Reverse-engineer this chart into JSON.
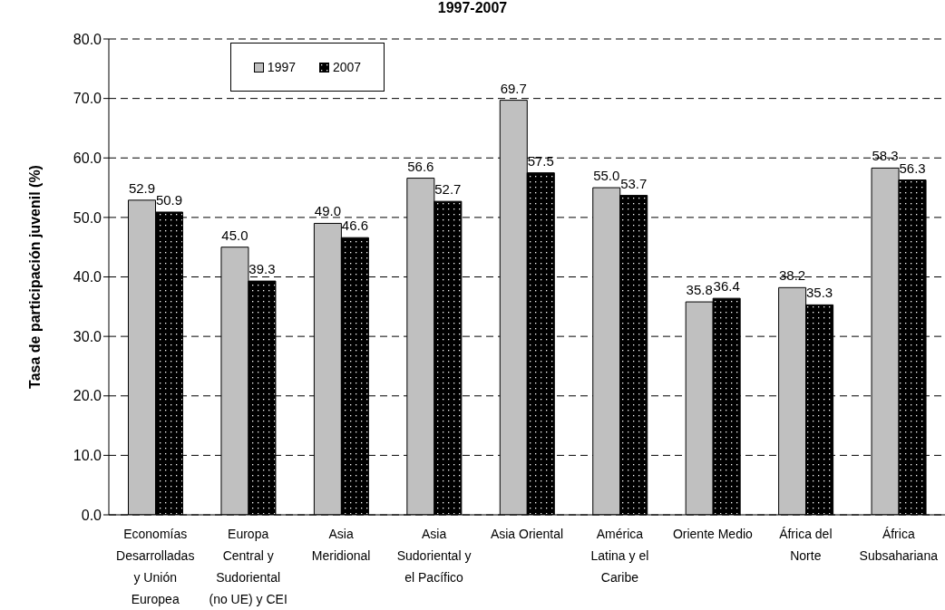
{
  "chart_data": {
    "type": "bar",
    "title": "1997-2007",
    "ylabel": "Tasa de participación juvenil (%)",
    "categories": [
      "Economías Desarrolladas y Unión Europea",
      "Europa Central y Sudoriental (no UE) y CEI",
      "Asia Meridional",
      "Asia Sudoriental y el Pacífico",
      "Asia Oriental",
      "América Latina y el Caribe",
      "Oriente Medio",
      "África del Norte",
      "África Subsahariana"
    ],
    "series": [
      {
        "name": "1997",
        "color": "#c0c0c0",
        "values": [
          52.9,
          45.0,
          49.0,
          56.6,
          69.7,
          55.0,
          35.8,
          38.2,
          58.3
        ],
        "value_labels": [
          "52.9",
          "45.0",
          "49.0",
          "56.6",
          "69.7",
          "55.0",
          "35.8",
          "38.2",
          "58.3"
        ]
      },
      {
        "name": "2007",
        "color": "#000000",
        "values": [
          50.9,
          39.3,
          46.6,
          52.7,
          57.5,
          53.7,
          36.4,
          35.3,
          56.3
        ],
        "value_labels": [
          "50.9",
          "39.3",
          "46.6",
          "52.7",
          "57.5",
          "53.7",
          "36.4",
          "35.3",
          "56.3"
        ]
      }
    ],
    "ylim": [
      0,
      80
    ],
    "yticks": [
      {
        "value": 0,
        "label": "0.0"
      },
      {
        "value": 10,
        "label": "10.0"
      },
      {
        "value": 20,
        "label": "20.0"
      },
      {
        "value": 30,
        "label": "30.0"
      },
      {
        "value": 40,
        "label": "40.0"
      },
      {
        "value": 50,
        "label": "50.0"
      },
      {
        "value": 60,
        "label": "60.0"
      },
      {
        "value": 70,
        "label": "70.0"
      },
      {
        "value": 80,
        "label": "80.0"
      }
    ],
    "grid": "y",
    "legend": "top left"
  }
}
